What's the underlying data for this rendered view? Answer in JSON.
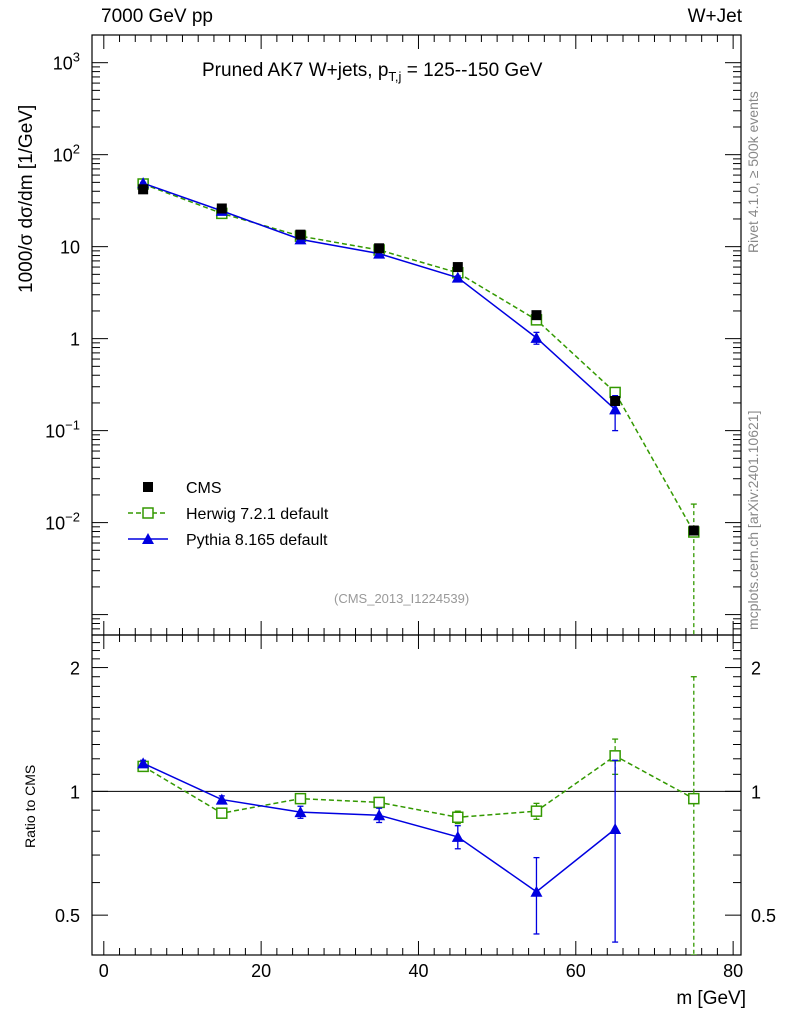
{
  "header": {
    "left": "7000 GeV pp",
    "right": "W+Jet"
  },
  "title": {
    "main": "Pruned AK7 W+jets, p",
    "sub": "T,j",
    "range": " = 125--150 GeV"
  },
  "analysis_id": "(CMS_2013_I1224539)",
  "side_labels": {
    "rivet": "Rivet 4.1.0, ≥ 500k events",
    "mcplots": "mcplots.cern.ch [arXiv:2401.10621]"
  },
  "colors": {
    "cms": "#000000",
    "herwig": "#339900",
    "pythia": "#0000e0"
  },
  "chart_data": [
    {
      "type": "scatter",
      "title": "Pruned AK7 W+jets, pT,j = 125--150 GeV",
      "xlabel": "m [GeV]",
      "ylabel": "1000/σ  dσ/dm [1/GeV]",
      "yscale": "log",
      "xlim": [
        -1.5,
        81
      ],
      "ylim": [
        0.0006,
        2000
      ],
      "x_ticks": [
        "0",
        "20",
        "40",
        "60",
        "80"
      ],
      "y_ticks": [
        {
          "value": 1000,
          "base": "10",
          "exp": "3"
        },
        {
          "value": 100,
          "base": "10",
          "exp": "2"
        },
        {
          "value": 10,
          "base": "10",
          "exp": ""
        },
        {
          "value": 1,
          "base": "1",
          "exp": ""
        },
        {
          "value": 0.1,
          "base": "10",
          "exp": "−1"
        },
        {
          "value": 0.01,
          "base": "10",
          "exp": "−2"
        }
      ],
      "x": [
        5,
        15,
        25,
        35,
        45,
        55,
        65,
        75
      ],
      "series": [
        {
          "name": "CMS",
          "style": "square-filled",
          "values": [
            42,
            26,
            13.5,
            9.6,
            6.0,
            1.8,
            0.21,
            0.0082
          ],
          "errors": [
            2,
            1.2,
            0.6,
            0.4,
            0.3,
            0.1,
            0.02,
            0.0008
          ]
        },
        {
          "name": "Herwig 7.2.1 default",
          "style": "square-open-dashed",
          "values": [
            48,
            23,
            13.0,
            9.2,
            5.2,
            1.6,
            0.26,
            0.0079
          ],
          "errors": [
            1,
            0.6,
            0.3,
            0.25,
            0.2,
            0.08,
            0.03,
            0.008
          ]
        },
        {
          "name": "Pythia 8.165 default",
          "style": "triangle-solid",
          "values": [
            49,
            24.5,
            12.0,
            8.4,
            4.6,
            1.02,
            0.17,
            null
          ],
          "errors": [
            1,
            0.6,
            0.3,
            0.25,
            0.2,
            0.15,
            0.07,
            null
          ]
        }
      ]
    },
    {
      "type": "scatter",
      "title": "",
      "xlabel": "m [GeV]",
      "ylabel": "Ratio to CMS",
      "yscale": "log",
      "xlim": [
        -1.5,
        81
      ],
      "ylim": [
        0.4,
        2.4
      ],
      "y_ticks": [
        {
          "value": 0.5,
          "label": "0.5"
        },
        {
          "value": 1,
          "label": "1"
        },
        {
          "value": 2,
          "label": "2"
        }
      ],
      "reference_line": 1,
      "x": [
        5,
        15,
        25,
        35,
        45,
        55,
        65,
        75
      ],
      "series": [
        {
          "name": "Herwig 7.2.1 default",
          "values": [
            1.15,
            0.885,
            0.96,
            0.94,
            0.865,
            0.895,
            1.22,
            0.96
          ],
          "err_lo": [
            0.02,
            0.02,
            0.02,
            0.02,
            0.03,
            0.04,
            0.12,
            0.56
          ],
          "err_hi": [
            0.02,
            0.02,
            0.02,
            0.02,
            0.03,
            0.04,
            0.12,
            0.94
          ]
        },
        {
          "name": "Pythia 8.165 default",
          "values": [
            1.17,
            0.955,
            0.89,
            0.875,
            0.775,
            0.57,
            0.81,
            null
          ],
          "err_lo": [
            0.02,
            0.02,
            0.03,
            0.035,
            0.05,
            0.12,
            0.38,
            null
          ],
          "err_hi": [
            0.02,
            0.02,
            0.03,
            0.035,
            0.05,
            0.12,
            0.38,
            null
          ]
        }
      ]
    }
  ]
}
